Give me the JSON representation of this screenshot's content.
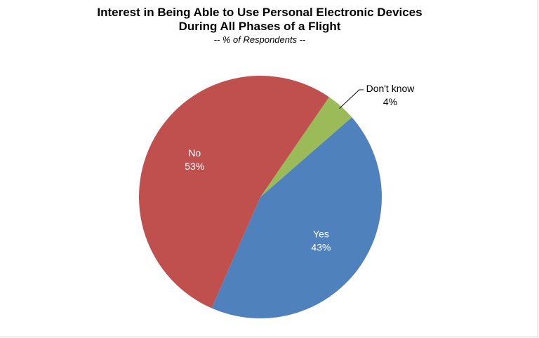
{
  "chart_data": {
    "type": "pie",
    "title_line1": "Interest in Being Able to Use Personal Electronic Devices",
    "title_line2": "During All Phases of a Flight",
    "subtitle": "-- % of Respondents --",
    "legend": "none",
    "slices": [
      {
        "name": "Don't know",
        "value": 4,
        "label_value": "4%",
        "color": "#9bbb59",
        "label_color": "#000000"
      },
      {
        "name": "Yes",
        "value": 43,
        "label_value": "43%",
        "color": "#4f81bd",
        "label_color": "#ffffff"
      },
      {
        "name": "No",
        "value": 53,
        "label_value": "53%",
        "color": "#c0504d",
        "label_color": "#ffffff"
      }
    ]
  }
}
